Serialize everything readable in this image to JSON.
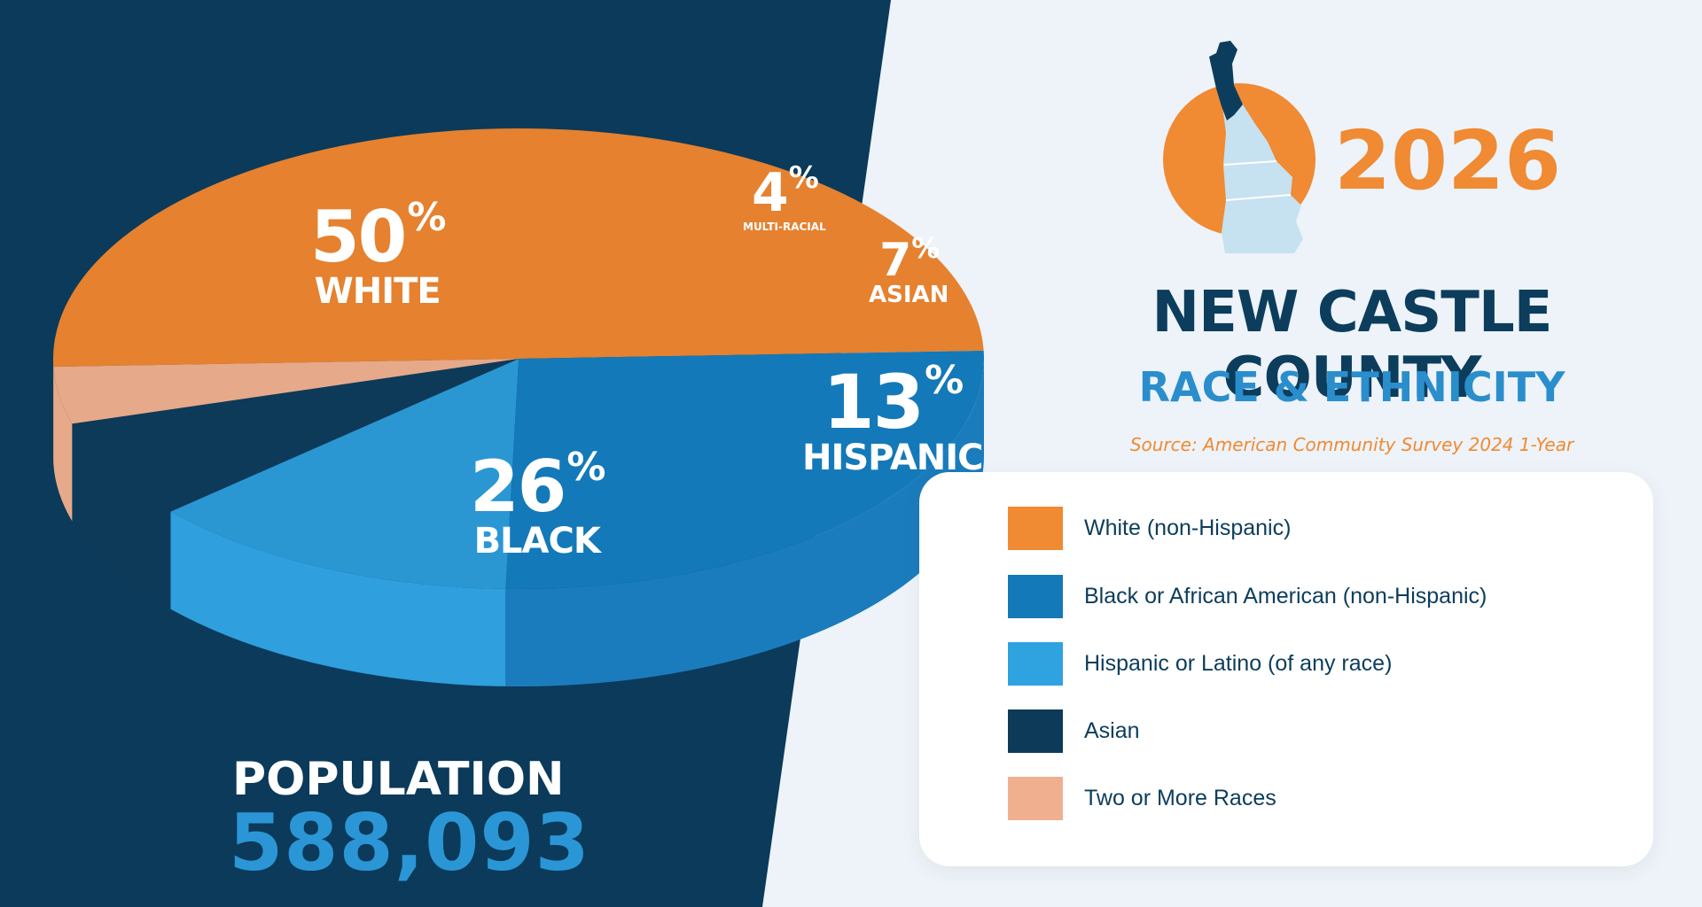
{
  "header": {
    "year": "2026",
    "county": "NEW CASTLE COUNTY",
    "subtitle": "RACE & ETHNICITY",
    "source": "Source: American Community Survey 2024 1-Year"
  },
  "population": {
    "label": "POPULATION",
    "value": "588,093"
  },
  "colors": {
    "white": "#e5812f",
    "black": "#1479b8",
    "hispanic": "#2a97d3",
    "asian": "#0d3a58",
    "multi": "#e6a98a",
    "left_panel": "#0b3a5a",
    "right_panel": "#edf3f8"
  },
  "slice_labels": {
    "white": {
      "pct": "50",
      "name": "WHITE"
    },
    "black": {
      "pct": "26",
      "name": "BLACK"
    },
    "hispanic": {
      "pct": "13",
      "name": "HISPANIC"
    },
    "asian": {
      "pct": "7",
      "name": "ASIAN"
    },
    "multi": {
      "pct": "4",
      "name": "MULTI-RACIAL"
    }
  },
  "legend": {
    "items": [
      {
        "label": "White (non-Hispanic)",
        "color": "#f08a33"
      },
      {
        "label": "Black or African American (non-Hispanic)",
        "color": "#1479b8"
      },
      {
        "label": "Hispanic or Latino (of any race)",
        "color": "#2ea3e0"
      },
      {
        "label": "Asian",
        "color": "#0d3a58"
      },
      {
        "label": "Two or More Races",
        "color": "#f0b090"
      }
    ]
  },
  "chart_data": {
    "type": "pie",
    "categories": [
      "White",
      "Black",
      "Hispanic",
      "Asian",
      "Multi-Racial"
    ],
    "values": [
      50,
      26,
      13,
      7,
      4
    ],
    "unit": "%",
    "title": "NEW CASTLE COUNTY RACE & ETHNICITY"
  },
  "map": {
    "icon": "delaware-map-icon"
  }
}
